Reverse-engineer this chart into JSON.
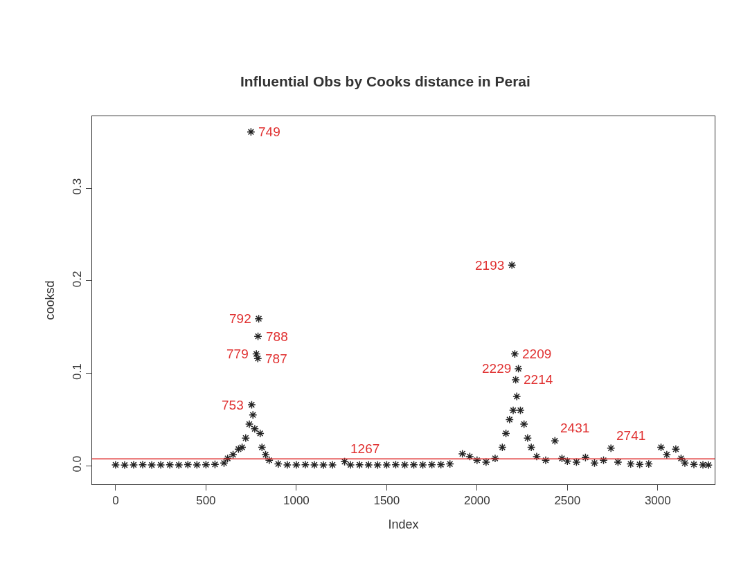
{
  "chart_data": {
    "type": "scatter",
    "title": "Influential Obs by Cooks distance in Perai",
    "xlabel": "Index",
    "ylabel": "cooksd",
    "marker": "cross",
    "x": [
      0,
      50,
      100,
      150,
      200,
      250,
      300,
      350,
      400,
      450,
      500,
      550,
      600,
      620,
      650,
      680,
      700,
      720,
      740,
      749,
      753,
      760,
      770,
      779,
      787,
      788,
      792,
      800,
      810,
      830,
      850,
      900,
      950,
      1000,
      1050,
      1100,
      1150,
      1200,
      1267,
      1300,
      1350,
      1400,
      1450,
      1500,
      1550,
      1600,
      1650,
      1700,
      1750,
      1800,
      1850,
      1919,
      1960,
      2000,
      2050,
      2100,
      2140,
      2160,
      2180,
      2193,
      2200,
      2209,
      2214,
      2220,
      2229,
      2240,
      2260,
      2280,
      2300,
      2330,
      2380,
      2431,
      2470,
      2500,
      2550,
      2600,
      2650,
      2700,
      2741,
      2780,
      2850,
      2900,
      2950,
      3018,
      3050,
      3100,
      3129,
      3150,
      3200,
      3250,
      3280
    ],
    "series": [
      {
        "color": "#222222",
        "values": [
          0.001,
          0.0008,
          0.001,
          0.0012,
          0.0009,
          0.001,
          0.0011,
          0.0009,
          0.0013,
          0.001,
          0.0012,
          0.0015,
          0.003,
          0.008,
          0.012,
          0.018,
          0.02,
          0.03,
          0.045,
          0.361,
          0.066,
          0.055,
          0.04,
          0.121,
          0.116,
          0.14,
          0.159,
          0.035,
          0.02,
          0.012,
          0.006,
          0.002,
          0.001,
          0.001,
          0.0012,
          0.001,
          0.0009,
          0.001,
          0.0045,
          0.001,
          0.0011,
          0.001,
          0.0009,
          0.001,
          0.0012,
          0.001,
          0.0011,
          0.001,
          0.0012,
          0.0013,
          0.002,
          0.013,
          0.01,
          0.006,
          0.004,
          0.008,
          0.02,
          0.035,
          0.05,
          0.217,
          0.06,
          0.121,
          0.093,
          0.075,
          0.105,
          0.06,
          0.045,
          0.03,
          0.02,
          0.01,
          0.006,
          0.027,
          0.008,
          0.005,
          0.004,
          0.009,
          0.003,
          0.006,
          0.019,
          0.004,
          0.002,
          0.0015,
          0.002,
          0.02,
          0.012,
          0.018,
          0.008,
          0.003,
          0.0015,
          0.001,
          0.0008
        ]
      }
    ],
    "xlim": [
      -130,
      3315
    ],
    "xticks": [
      0,
      500,
      1000,
      1500,
      2000,
      2500,
      3000
    ],
    "ylim": [
      -0.02,
      0.378
    ],
    "yticks": [
      {
        "value": 0,
        "label": "0.0"
      },
      {
        "value": 0.1,
        "label": "0.1"
      },
      {
        "value": 0.2,
        "label": "0.2"
      },
      {
        "value": 0.3,
        "label": "0.3"
      }
    ],
    "ref_lines": [
      {
        "axis": "y",
        "value": 0.0075,
        "color": "#e03030"
      }
    ],
    "annotations": [
      {
        "text": "749",
        "x": 749,
        "y": 0.361
      },
      {
        "text": "792",
        "x": 792,
        "y": 0.159
      },
      {
        "text": "788",
        "x": 788,
        "y": 0.14
      },
      {
        "text": "779",
        "x": 779,
        "y": 0.121
      },
      {
        "text": "787",
        "x": 787,
        "y": 0.116
      },
      {
        "text": "753",
        "x": 753,
        "y": 0.066
      },
      {
        "text": "1267",
        "x": 1267,
        "y": 0.0045
      },
      {
        "text": "2193",
        "x": 2193,
        "y": 0.217
      },
      {
        "text": "2209",
        "x": 2209,
        "y": 0.121
      },
      {
        "text": "2229",
        "x": 2229,
        "y": 0.105
      },
      {
        "text": "2214",
        "x": 2214,
        "y": 0.093
      },
      {
        "text": "2431",
        "x": 2431,
        "y": 0.027
      },
      {
        "text": "2741",
        "x": 2741,
        "y": 0.019
      }
    ]
  }
}
